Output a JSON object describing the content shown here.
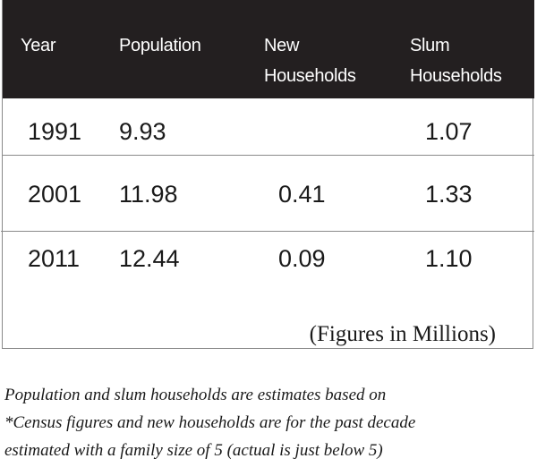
{
  "table": {
    "headers": {
      "year": "Year",
      "population": "Population",
      "new_households_line1": "New",
      "new_households_line2": "Households",
      "slum_households_line1": "Slum",
      "slum_households_line2": "Households"
    },
    "rows": [
      {
        "year": "1991",
        "population": "9.93",
        "new_households": "",
        "slum_households": "1.07"
      },
      {
        "year": "2001",
        "population": "11.98",
        "new_households": "0.41",
        "slum_households": "1.33"
      },
      {
        "year": "2011",
        "population": "12.44",
        "new_households": "0.09",
        "slum_households": "1.10"
      }
    ],
    "unit_note": "(Figures in Millions)"
  },
  "footnote": {
    "line1": "Population and slum households are estimates based on",
    "line2": "*Census figures and new households are for the past decade",
    "line3": "estimated with a family size of 5 (actual is just below 5)"
  },
  "colors": {
    "header_background": "#231f20",
    "header_text": "#ffffff",
    "body_text": "#1a1a1a",
    "rule": "#8a8a8a"
  }
}
